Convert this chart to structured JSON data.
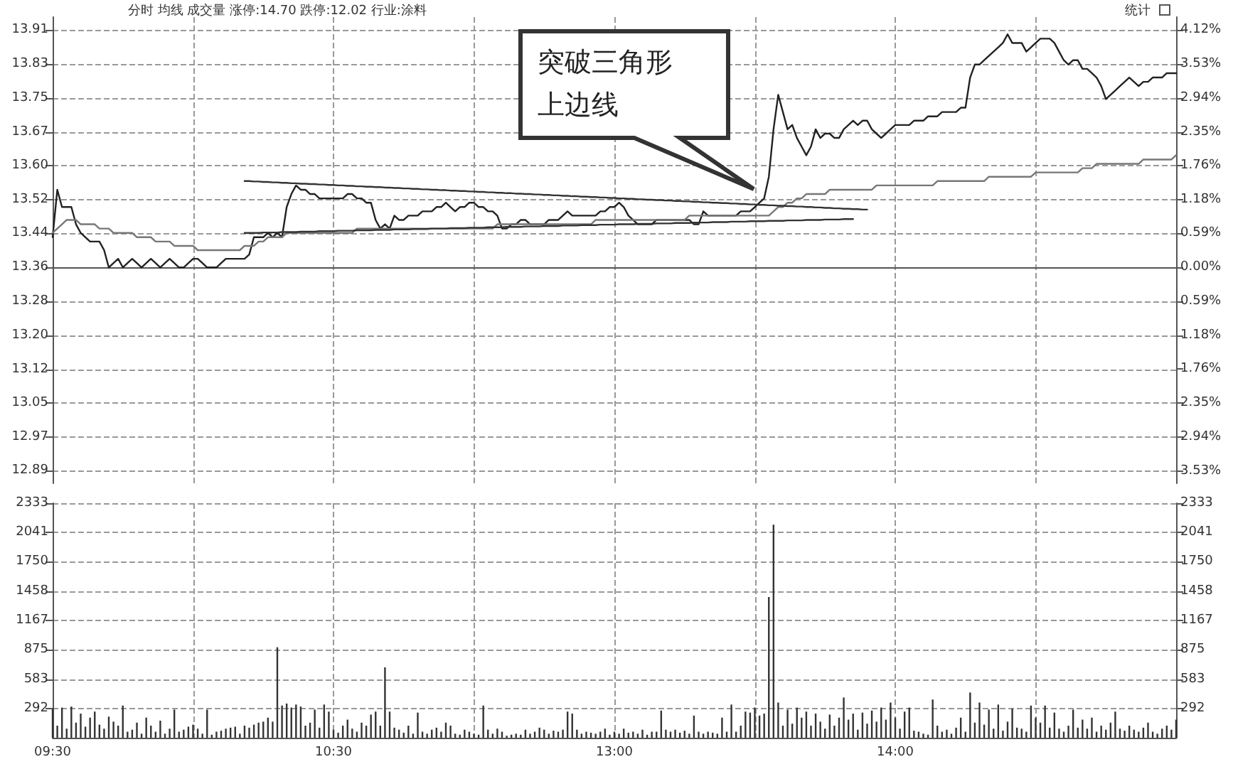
{
  "chart_data": [
    {
      "type": "line",
      "annotations": [
        "分时 均线 成交量 涨停:14.70 跌停:12.02 行业:涂料",
        "统计",
        "突破三角形上边线"
      ],
      "series": [
        {
          "color": "#222222",
          "values": [
            13.43,
            13.54,
            13.5,
            13.5,
            13.5,
            13.46,
            13.44,
            13.43,
            13.42,
            13.42,
            13.42,
            13.4,
            13.36,
            13.37,
            13.38,
            13.36,
            13.37,
            13.38,
            13.37,
            13.36,
            13.37,
            13.38,
            13.37,
            13.36,
            13.37,
            13.38,
            13.37,
            13.36,
            13.36,
            13.37,
            13.38,
            13.38,
            13.37,
            13.36,
            13.36,
            13.36,
            13.37,
            13.38,
            13.38,
            13.38,
            13.38,
            13.38,
            13.39,
            13.43,
            13.43,
            13.43,
            13.44,
            13.43,
            13.44,
            13.43,
            13.5,
            13.53,
            13.55,
            13.54,
            13.54,
            13.53,
            13.53,
            13.52,
            13.52,
            13.52,
            13.52,
            13.52,
            13.52,
            13.53,
            13.53,
            13.52,
            13.52,
            13.51,
            13.51,
            13.47,
            13.45,
            13.46,
            13.45,
            13.48,
            13.47,
            13.47,
            13.48,
            13.48,
            13.48,
            13.49,
            13.49,
            13.49,
            13.5,
            13.5,
            13.51,
            13.5,
            13.49,
            13.5,
            13.5,
            13.51,
            13.51,
            13.5,
            13.5,
            13.49,
            13.49,
            13.48,
            13.45,
            13.45,
            13.46,
            13.46,
            13.47,
            13.47,
            13.46,
            13.46,
            13.46,
            13.46,
            13.47,
            13.47,
            13.47,
            13.48,
            13.49,
            13.48,
            13.48,
            13.48,
            13.48,
            13.48,
            13.48,
            13.49,
            13.49,
            13.5,
            13.5,
            13.51,
            13.5,
            13.48,
            13.47,
            13.46,
            13.46,
            13.46,
            13.46,
            13.47,
            13.47,
            13.47,
            13.47,
            13.47,
            13.47,
            13.47,
            13.47,
            13.46,
            13.46,
            13.49,
            13.48,
            13.48,
            13.48,
            13.48,
            13.48,
            13.48,
            13.48,
            13.49,
            13.49,
            13.49,
            13.5,
            13.51,
            13.52,
            13.57,
            13.68,
            13.76,
            13.72,
            13.68,
            13.69,
            13.66,
            13.64,
            13.62,
            13.64,
            13.68,
            13.66,
            13.67,
            13.67,
            13.66,
            13.66,
            13.68,
            13.69,
            13.7,
            13.69,
            13.7,
            13.7,
            13.68,
            13.67,
            13.66,
            13.67,
            13.68,
            13.69,
            13.69,
            13.69,
            13.69,
            13.7,
            13.7,
            13.7,
            13.71,
            13.71,
            13.71,
            13.72,
            13.72,
            13.72,
            13.72,
            13.73,
            13.73,
            13.8,
            13.83,
            13.83,
            13.84,
            13.85,
            13.86,
            13.87,
            13.88,
            13.9,
            13.88,
            13.88,
            13.88,
            13.86,
            13.87,
            13.88,
            13.89,
            13.89,
            13.89,
            13.88,
            13.86,
            13.84,
            13.83,
            13.84,
            13.84,
            13.82,
            13.82,
            13.81,
            13.8,
            13.78,
            13.75,
            13.76,
            13.77,
            13.78,
            13.79,
            13.8,
            13.79,
            13.78,
            13.79,
            13.79,
            13.8,
            13.8,
            13.8,
            13.81,
            13.81,
            13.81
          ]
        },
        {
          "color": "#777777",
          "values": [
            13.44,
            13.45,
            13.46,
            13.47,
            13.47,
            13.47,
            13.46,
            13.46,
            13.46,
            13.46,
            13.45,
            13.45,
            13.45,
            13.44,
            13.44,
            13.44,
            13.44,
            13.44,
            13.43,
            13.43,
            13.43,
            13.43,
            13.42,
            13.42,
            13.42,
            13.42,
            13.41,
            13.41,
            13.41,
            13.41,
            13.41,
            13.4,
            13.4,
            13.4,
            13.4,
            13.4,
            13.4,
            13.4,
            13.4,
            13.4,
            13.4,
            13.41,
            13.41,
            13.41,
            13.42,
            13.42,
            13.43,
            13.43,
            13.43,
            13.43,
            13.44,
            13.44,
            13.44,
            13.44,
            13.44,
            13.44,
            13.44,
            13.44,
            13.44,
            13.44,
            13.44,
            13.44,
            13.44,
            13.44,
            13.44,
            13.45,
            13.45,
            13.45,
            13.45,
            13.45,
            13.45,
            13.45,
            13.45,
            13.45,
            13.45,
            13.45,
            13.45,
            13.45,
            13.45,
            13.45,
            13.45,
            13.45,
            13.45,
            13.45,
            13.45,
            13.45,
            13.45,
            13.45,
            13.45,
            13.45,
            13.45,
            13.45,
            13.45,
            13.45,
            13.45,
            13.46,
            13.46,
            13.46,
            13.46,
            13.46,
            13.46,
            13.46,
            13.46,
            13.46,
            13.46,
            13.46,
            13.46,
            13.46,
            13.46,
            13.46,
            13.46,
            13.46,
            13.46,
            13.46,
            13.46,
            13.46,
            13.47,
            13.47,
            13.47,
            13.47,
            13.47,
            13.47,
            13.47,
            13.47,
            13.47,
            13.47,
            13.47,
            13.47,
            13.47,
            13.47,
            13.47,
            13.47,
            13.47,
            13.47,
            13.47,
            13.47,
            13.48,
            13.48,
            13.48,
            13.48,
            13.48,
            13.48,
            13.48,
            13.48,
            13.48,
            13.48,
            13.48,
            13.48,
            13.48,
            13.48,
            13.48,
            13.48,
            13.48,
            13.48,
            13.49,
            13.5,
            13.5,
            13.51,
            13.51,
            13.52,
            13.52,
            13.53,
            13.53,
            13.53,
            13.53,
            13.53,
            13.54,
            13.54,
            13.54,
            13.54,
            13.54,
            13.54,
            13.54,
            13.54,
            13.54,
            13.54,
            13.55,
            13.55,
            13.55,
            13.55,
            13.55,
            13.55,
            13.55,
            13.55,
            13.55,
            13.55,
            13.55,
            13.55,
            13.55,
            13.56,
            13.56,
            13.56,
            13.56,
            13.56,
            13.56,
            13.56,
            13.56,
            13.56,
            13.56,
            13.56,
            13.57,
            13.57,
            13.57,
            13.57,
            13.57,
            13.57,
            13.57,
            13.57,
            13.57,
            13.57,
            13.58,
            13.58,
            13.58,
            13.58,
            13.58,
            13.58,
            13.58,
            13.58,
            13.58,
            13.58,
            13.59,
            13.59,
            13.59,
            13.6,
            13.6,
            13.6,
            13.6,
            13.6,
            13.6,
            13.6,
            13.6,
            13.6,
            13.6,
            13.61,
            13.61,
            13.61,
            13.61,
            13.61,
            13.61,
            13.61,
            13.62
          ]
        },
        {
          "color": "#333333",
          "values": [
            null,
            null,
            null,
            null,
            null,
            null,
            null,
            null,
            null,
            null,
            null,
            null,
            null,
            null,
            null,
            null,
            null,
            null,
            null,
            null,
            null,
            null,
            null,
            null,
            null,
            null,
            null,
            null,
            null,
            null,
            null,
            null,
            null,
            null,
            null,
            null,
            null,
            null,
            null,
            null,
            null,
            13.56,
            13.56,
            13.559,
            13.559,
            13.558,
            13.558,
            13.557,
            13.557,
            13.556,
            13.556,
            13.555,
            13.555,
            13.554,
            13.554,
            13.553,
            13.553,
            13.552,
            13.552,
            13.551,
            13.551,
            13.55,
            13.55,
            13.549,
            13.549,
            13.548,
            13.548,
            13.547,
            13.547,
            13.546,
            13.546,
            13.545,
            13.545,
            13.544,
            13.544,
            13.543,
            13.543,
            13.542,
            13.542,
            13.541,
            13.541,
            13.54,
            13.54,
            13.539,
            13.539,
            13.538,
            13.538,
            13.537,
            13.537,
            13.536,
            13.536,
            13.535,
            13.535,
            13.534,
            13.534,
            13.533,
            13.533,
            13.532,
            13.532,
            13.531,
            13.531,
            13.53,
            13.53,
            13.529,
            13.529,
            13.528,
            13.528,
            13.527,
            13.527,
            13.526,
            13.526,
            13.525,
            13.525,
            13.524,
            13.524,
            13.523,
            13.523,
            13.522,
            13.522,
            13.521,
            13.521,
            13.52,
            13.52,
            13.519,
            13.519,
            13.518,
            13.518,
            13.517,
            13.517,
            13.516,
            13.516,
            13.515,
            13.515,
            13.514,
            13.514,
            13.513,
            13.513,
            13.512,
            13.512,
            13.511,
            13.511,
            13.51,
            13.51,
            13.509,
            13.509,
            13.508,
            13.508,
            13.507,
            13.507,
            13.506,
            13.506,
            13.505,
            13.505,
            13.504,
            13.504,
            13.503,
            13.503,
            13.502,
            13.502,
            13.501,
            13.501,
            13.5,
            13.5,
            13.499,
            13.499,
            13.498,
            13.498,
            13.497,
            13.497,
            13.496,
            13.496,
            13.495,
            13.495,
            13.494,
            13.494,
            null,
            null,
            null,
            null,
            null,
            null,
            null,
            null,
            null,
            null,
            null,
            null,
            null,
            null,
            null,
            null,
            null,
            null,
            null,
            null,
            null,
            null,
            null,
            null,
            null,
            null,
            null,
            null,
            null,
            null,
            null,
            null,
            null,
            null,
            null,
            null,
            null,
            null,
            null,
            null,
            null,
            null,
            null,
            null,
            null,
            null,
            null,
            null,
            null,
            null,
            null,
            null,
            null,
            null,
            null,
            null,
            null,
            null,
            null,
            null,
            null,
            null,
            null,
            null,
            null,
            null
          ]
        },
        {
          "color": "#333333",
          "values": [
            null,
            null,
            null,
            null,
            null,
            null,
            null,
            null,
            null,
            null,
            null,
            null,
            null,
            null,
            null,
            null,
            null,
            null,
            null,
            null,
            null,
            null,
            null,
            null,
            null,
            null,
            null,
            null,
            null,
            null,
            null,
            null,
            null,
            null,
            null,
            null,
            null,
            null,
            null,
            null,
            null,
            13.44,
            13.44,
            13.44,
            13.44,
            13.441,
            13.441,
            13.441,
            13.441,
            13.442,
            13.442,
            13.442,
            13.442,
            13.443,
            13.443,
            13.443,
            13.443,
            13.444,
            13.444,
            13.444,
            13.444,
            13.445,
            13.445,
            13.445,
            13.445,
            13.446,
            13.446,
            13.446,
            13.446,
            13.447,
            13.447,
            13.447,
            13.447,
            13.448,
            13.448,
            13.448,
            13.448,
            13.449,
            13.449,
            13.449,
            13.449,
            13.45,
            13.45,
            13.45,
            13.45,
            13.451,
            13.451,
            13.451,
            13.451,
            13.452,
            13.452,
            13.452,
            13.452,
            13.453,
            13.453,
            13.453,
            13.453,
            13.454,
            13.454,
            13.454,
            13.454,
            13.455,
            13.455,
            13.455,
            13.455,
            13.456,
            13.456,
            13.456,
            13.456,
            13.457,
            13.457,
            13.457,
            13.457,
            13.458,
            13.458,
            13.458,
            13.458,
            13.459,
            13.459,
            13.459,
            13.459,
            13.46,
            13.46,
            13.46,
            13.46,
            13.461,
            13.461,
            13.461,
            13.461,
            13.462,
            13.462,
            13.462,
            13.462,
            13.463,
            13.463,
            13.463,
            13.463,
            13.464,
            13.464,
            13.464,
            13.464,
            13.465,
            13.465,
            13.465,
            13.465,
            13.466,
            13.466,
            13.466,
            13.466,
            13.467,
            13.467,
            13.467,
            13.467,
            13.468,
            13.468,
            13.468,
            13.468,
            13.469,
            13.469,
            13.469,
            13.469,
            13.47,
            13.47,
            13.47,
            13.47,
            13.471,
            13.471,
            13.471,
            13.471,
            13.472,
            13.472,
            13.472,
            null,
            null,
            null,
            null,
            null,
            null,
            null,
            null,
            null,
            null,
            null,
            null,
            null,
            null,
            null,
            null,
            null,
            null,
            null,
            null,
            null,
            null,
            null,
            null,
            null,
            null,
            null,
            null,
            null,
            null,
            null,
            null,
            null,
            null,
            null,
            null,
            null,
            null,
            null,
            null,
            null,
            null,
            null,
            null,
            null,
            null,
            null,
            null,
            null,
            null,
            null,
            null,
            null,
            null,
            null,
            null,
            null,
            null,
            null,
            null,
            null,
            null,
            null,
            null,
            null,
            null,
            null,
            null,
            null
          ]
        }
      ],
      "ylim": [
        12.86,
        13.94
      ],
      "yticks": [
        {
          "value": 12.889,
          "label": "12.89"
        },
        {
          "value": 12.967,
          "label": "12.97"
        },
        {
          "value": 13.046,
          "label": "13.05"
        },
        {
          "value": 13.124,
          "label": "13.12"
        },
        {
          "value": 13.203,
          "label": "13.20"
        },
        {
          "value": 13.281,
          "label": "13.28"
        },
        {
          "value": 13.36,
          "label": "13.36"
        },
        {
          "value": 13.439,
          "label": "13.44"
        },
        {
          "value": 13.517,
          "label": "13.52"
        },
        {
          "value": 13.596,
          "label": "13.60"
        },
        {
          "value": 13.674,
          "label": "13.67"
        },
        {
          "value": 13.753,
          "label": "13.75"
        },
        {
          "value": 13.831,
          "label": "13.83"
        },
        {
          "value": 13.91,
          "label": "13.91"
        }
      ],
      "y2lim": [
        -3.74,
        4.34
      ],
      "y2ticks": [
        {
          "value": -3.53,
          "label": "3.53%"
        },
        {
          "value": -2.94,
          "label": "2.94%"
        },
        {
          "value": -2.35,
          "label": "2.35%"
        },
        {
          "value": -1.76,
          "label": "1.76%"
        },
        {
          "value": -1.18,
          "label": "1.18%"
        },
        {
          "value": -0.59,
          "label": "0.59%"
        },
        {
          "value": 0,
          "label": "0.00%"
        },
        {
          "value": 0.59,
          "label": "0.59%"
        },
        {
          "value": 1.18,
          "label": "1.18%"
        },
        {
          "value": 1.76,
          "label": "1.76%"
        },
        {
          "value": 2.35,
          "label": "2.35%"
        },
        {
          "value": 2.94,
          "label": "2.94%"
        },
        {
          "value": 3.53,
          "label": "3.53%"
        },
        {
          "value": 4.12,
          "label": "4.12%"
        }
      ],
      "grid": true,
      "marker": "none",
      "line_style": "solid",
      "tick_labels": "y"
    },
    {
      "type": "bar",
      "color": "#333333",
      "categories": [
        "09:30",
        null,
        null,
        null,
        null,
        null,
        null,
        null,
        null,
        null,
        null,
        null,
        null,
        null,
        null,
        null,
        null,
        null,
        null,
        null,
        null,
        null,
        null,
        null,
        null,
        null,
        null,
        null,
        null,
        null,
        null,
        null,
        null,
        null,
        null,
        null,
        null,
        null,
        null,
        null,
        null,
        null,
        null,
        null,
        null,
        null,
        null,
        null,
        null,
        null,
        null,
        null,
        null,
        null,
        null,
        null,
        null,
        null,
        null,
        null,
        "10:30",
        null,
        null,
        null,
        null,
        null,
        null,
        null,
        null,
        null,
        null,
        null,
        null,
        null,
        null,
        null,
        null,
        null,
        null,
        null,
        null,
        null,
        null,
        null,
        null,
        null,
        null,
        null,
        null,
        null,
        null,
        null,
        null,
        null,
        null,
        null,
        null,
        null,
        null,
        null,
        null,
        null,
        null,
        null,
        null,
        null,
        null,
        null,
        null,
        null,
        null,
        null,
        null,
        null,
        null,
        null,
        null,
        null,
        null,
        null,
        "13:00",
        null,
        null,
        null,
        null,
        null,
        null,
        null,
        null,
        null,
        null,
        null,
        null,
        null,
        null,
        null,
        null,
        null,
        null,
        null,
        null,
        null,
        null,
        null,
        null,
        null,
        null,
        null,
        null,
        null,
        null,
        null,
        null,
        null,
        null,
        null,
        null,
        null,
        null,
        null,
        null,
        null,
        null,
        null,
        null,
        null,
        null,
        null,
        null,
        null,
        null,
        null,
        null,
        null,
        null,
        null,
        null,
        null,
        null,
        null,
        "14:00",
        null,
        null,
        null,
        null,
        null,
        null,
        null,
        null,
        null,
        null,
        null,
        null,
        null,
        null,
        null,
        null,
        null,
        null,
        null,
        null,
        null,
        null,
        null,
        null,
        null,
        null,
        null,
        null,
        null,
        null,
        null,
        null,
        null,
        null,
        null,
        null,
        null,
        null,
        null,
        null,
        null,
        null,
        null,
        null,
        null,
        null,
        null,
        null,
        null,
        null,
        null,
        null,
        null,
        null,
        null,
        null,
        null,
        null,
        null,
        null
      ],
      "values": [
        290,
        120,
        300,
        90,
        310,
        150,
        240,
        110,
        200,
        260,
        130,
        90,
        210,
        160,
        120,
        320,
        60,
        80,
        150,
        40,
        200,
        120,
        60,
        170,
        40,
        90,
        280,
        60,
        80,
        110,
        130,
        90,
        40,
        280,
        30,
        60,
        70,
        90,
        100,
        110,
        40,
        120,
        100,
        130,
        150,
        160,
        200,
        160,
        900,
        320,
        340,
        300,
        330,
        310,
        120,
        150,
        280,
        100,
        330,
        260,
        80,
        50,
        120,
        180,
        90,
        60,
        150,
        120,
        230,
        260,
        120,
        700,
        260,
        100,
        80,
        50,
        120,
        40,
        250,
        60,
        40,
        80,
        100,
        60,
        150,
        120,
        40,
        30,
        80,
        60,
        40,
        30,
        320,
        80,
        40,
        90,
        60,
        20,
        30,
        40,
        30,
        80,
        40,
        60,
        100,
        80,
        40,
        70,
        60,
        80,
        260,
        240,
        80,
        40,
        60,
        50,
        40,
        60,
        90,
        30,
        60,
        40,
        90,
        50,
        60,
        40,
        80,
        30,
        60,
        60,
        270,
        80,
        60,
        80,
        50,
        70,
        40,
        220,
        60,
        40,
        60,
        50,
        40,
        200,
        60,
        330,
        60,
        120,
        260,
        250,
        300,
        220,
        240,
        1400,
        2120,
        350,
        120,
        280,
        140,
        300,
        200,
        260,
        120,
        240,
        160,
        90,
        230,
        120,
        200,
        400,
        180,
        240,
        80,
        250,
        140,
        270,
        160,
        300,
        180,
        350,
        200,
        90,
        260,
        300,
        70,
        60,
        40,
        30,
        380,
        120,
        60,
        80,
        40,
        100,
        200,
        60,
        450,
        150,
        350,
        130,
        280,
        90,
        330,
        70,
        160,
        290,
        100,
        90,
        60,
        320,
        200,
        150,
        320,
        100,
        250,
        90,
        60,
        120,
        280,
        100,
        180,
        90,
        200,
        60,
        120,
        80,
        150,
        260,
        90,
        70,
        120,
        80,
        60,
        100,
        150,
        60,
        40,
        90,
        120,
        80,
        180
      ],
      "ylim": [
        0,
        2333
      ],
      "yticks": [
        292,
        583,
        875,
        1167,
        1458,
        1750,
        2041,
        2333
      ],
      "y2lim": [
        0,
        2333
      ],
      "y2ticks": [
        292,
        583,
        875,
        1167,
        1458,
        1750,
        2041,
        2333
      ],
      "grid": true
    }
  ]
}
